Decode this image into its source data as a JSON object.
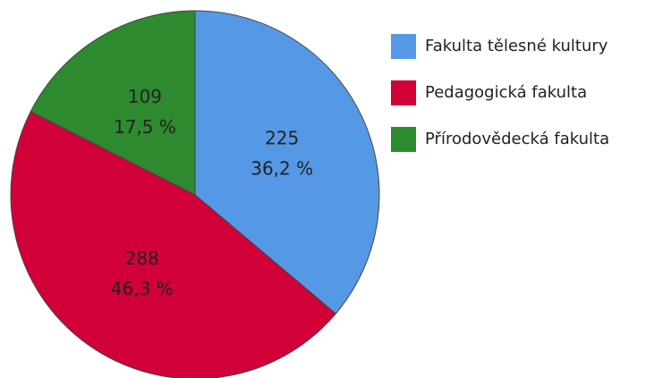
{
  "chart_data": {
    "type": "pie",
    "categories": [
      "Fakulta tělesné kultury",
      "Pedagogická fakulta",
      "Přírodovědecká fakulta"
    ],
    "values": [
      225,
      288,
      109
    ],
    "percentage_labels": [
      "36,2 %",
      "46,3 %",
      "17,5 %"
    ],
    "colors": [
      "#5599e6",
      "#d20038",
      "#2e8a2e"
    ],
    "legend": "right"
  }
}
